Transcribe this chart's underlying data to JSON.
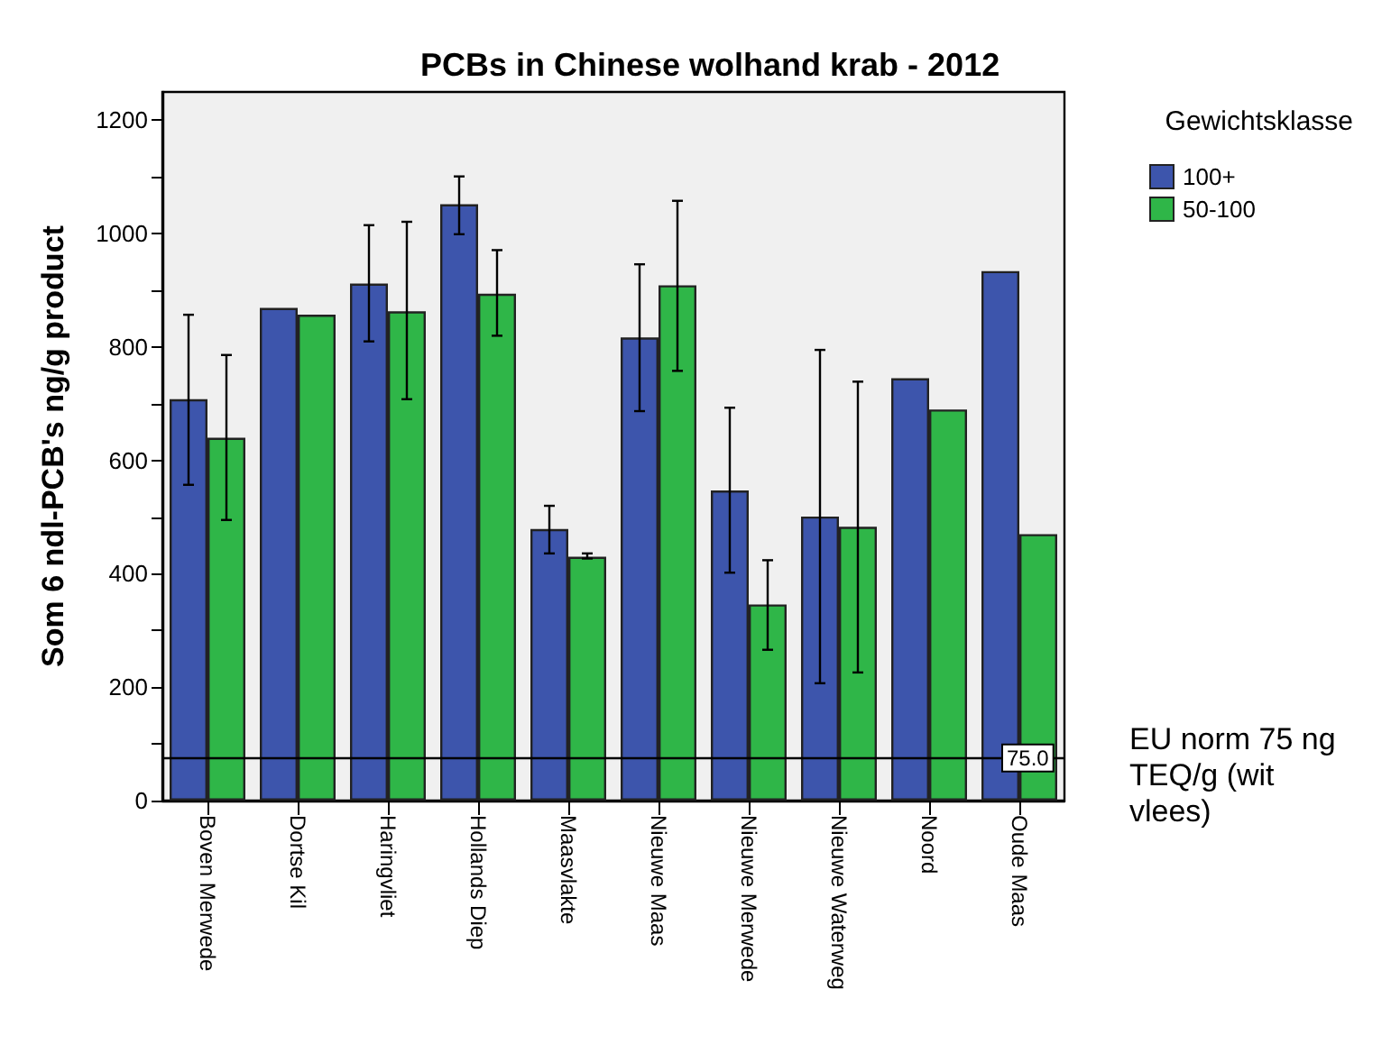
{
  "chart_data": {
    "type": "bar",
    "title": "PCBs in Chinese wolhand krab - 2012",
    "ylabel": "Som 6 ndl-PCB's ng/g product",
    "legend_title": "Gewichtsklasse",
    "categories": [
      "Boven Merwede",
      "Dortse Kil",
      "Haringvliet",
      "Hollands Diep",
      "Maasvlakte",
      "Nieuwe Maas",
      "Nieuwe Merwede",
      "Nieuwe Waterweg",
      "Noord",
      "Oude Maas"
    ],
    "series": [
      {
        "name": "100+",
        "color": "#3d55ac",
        "values": [
          708,
          869,
          912,
          1052,
          479,
          817,
          547,
          501,
          745,
          934
        ],
        "errors": [
          [
            557,
            857
          ],
          null,
          [
            810,
            1015
          ],
          [
            999,
            1101
          ],
          [
            436,
            520
          ],
          [
            687,
            946
          ],
          [
            402,
            693
          ],
          [
            207,
            795
          ],
          null,
          null
        ]
      },
      {
        "name": "50-100",
        "color": "#2fb648",
        "values": [
          640,
          857,
          863,
          894,
          430,
          909,
          346,
          483,
          690,
          470
        ],
        "errors": [
          [
            495,
            786
          ],
          null,
          [
            708,
            1021
          ],
          [
            820,
            971
          ],
          [
            427,
            436
          ],
          [
            758,
            1058
          ],
          [
            266,
            424
          ],
          [
            226,
            739
          ],
          null,
          null
        ]
      }
    ],
    "ylim": [
      0,
      1250
    ],
    "yticks": [
      0,
      {
        "value": 100,
        "label": null
      },
      200,
      {
        "value": 300,
        "label": null
      },
      400,
      {
        "value": 500,
        "label": null
      },
      600,
      {
        "value": 700,
        "label": null
      },
      800,
      {
        "value": 900,
        "label": null
      },
      1000,
      {
        "value": 1100,
        "label": null
      },
      1200
    ],
    "ref_lines": [
      {
        "axis": "y",
        "value": 75,
        "label": "75.0",
        "color": "#000000"
      }
    ],
    "annotations": [
      "EU norm 75 ng TEQ/g (wit vlees)"
    ],
    "legend": "top right",
    "grid": false
  }
}
